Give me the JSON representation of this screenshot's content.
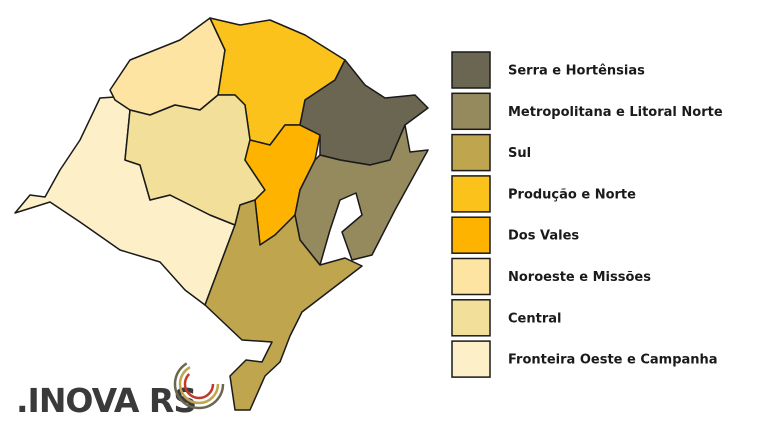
{
  "legend": [
    {
      "label": "Serra e Hortênsias",
      "color": "#6b6651"
    },
    {
      "label": "Metropolitana e Litoral Norte",
      "color": "#958a5e"
    },
    {
      "label": "Sul",
      "color": "#bfa54e"
    },
    {
      "label": "Produção e Norte",
      "color": "#fbc21c"
    },
    {
      "label": "Dos Vales",
      "color": "#fdb300"
    },
    {
      "label": "Noroeste e Missões",
      "color": "#fde4a3"
    },
    {
      "label": "Central",
      "color": "#f2e09a"
    },
    {
      "label": "Fronteira Oeste e Campanha",
      "color": "#fdf0c8"
    }
  ],
  "logo": {
    "text": ".INOVA RS"
  }
}
